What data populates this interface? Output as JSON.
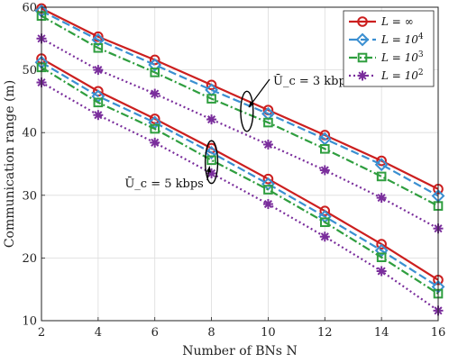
{
  "chart_data": {
    "type": "line",
    "xlabel": "Number of BNs N",
    "ylabel": "Communication range (m)",
    "xlim": [
      2,
      16
    ],
    "ylim": [
      10,
      60
    ],
    "xticks": [
      2,
      4,
      6,
      8,
      10,
      12,
      14,
      16
    ],
    "yticks": [
      10,
      20,
      30,
      40,
      50,
      60
    ],
    "grid": true,
    "legend_position": "top-right",
    "x": [
      2,
      4,
      6,
      8,
      10,
      12,
      14,
      16
    ],
    "series": [
      {
        "name": "L = ∞",
        "group": "3 kbps",
        "color": "#cc1f1f",
        "marker": "circle",
        "dash": "solid",
        "values": [
          59.8,
          55.3,
          51.6,
          47.6,
          43.6,
          39.6,
          35.5,
          31.0
        ]
      },
      {
        "name": "L = 10^4",
        "group": "3 kbps",
        "color": "#3a8fd1",
        "marker": "diamond",
        "dash": "dashed",
        "values": [
          59.4,
          54.8,
          50.8,
          46.8,
          43.0,
          39.0,
          34.9,
          29.9
        ]
      },
      {
        "name": "L = 10^3",
        "group": "3 kbps",
        "color": "#2f9e3f",
        "marker": "square",
        "dash": "dashdot",
        "values": [
          58.6,
          53.5,
          49.6,
          45.4,
          41.6,
          37.4,
          33.0,
          28.3
        ]
      },
      {
        "name": "L = 10^2",
        "group": "3 kbps",
        "color": "#7a2e9c",
        "marker": "star",
        "dash": "dotted",
        "values": [
          55.0,
          50.0,
          46.2,
          42.1,
          38.1,
          34.0,
          29.6,
          24.7
        ]
      },
      {
        "name": "L = ∞",
        "group": "5 kbps",
        "color": "#cc1f1f",
        "marker": "circle",
        "dash": "solid",
        "values": [
          51.8,
          46.6,
          42.2,
          37.5,
          32.6,
          27.5,
          22.2,
          16.5
        ]
      },
      {
        "name": "L = 10^4",
        "group": "5 kbps",
        "color": "#3a8fd1",
        "marker": "diamond",
        "dash": "dashed",
        "values": [
          51.2,
          45.8,
          41.6,
          36.8,
          31.8,
          26.6,
          21.2,
          15.4
        ]
      },
      {
        "name": "L = 10^3",
        "group": "5 kbps",
        "color": "#2f9e3f",
        "marker": "square",
        "dash": "dashdot",
        "values": [
          50.4,
          44.8,
          40.6,
          35.6,
          30.9,
          25.7,
          20.1,
          14.3
        ]
      },
      {
        "name": "L = 10^2",
        "group": "5 kbps",
        "color": "#7a2e9c",
        "marker": "star",
        "dash": "dotted",
        "values": [
          48.0,
          42.8,
          38.4,
          33.5,
          28.6,
          23.4,
          17.9,
          11.6
        ]
      }
    ],
    "legend": [
      {
        "label": "L = ∞",
        "base": "L = ∞",
        "sup": ""
      },
      {
        "label": "L = 10^4",
        "base": "L = 10",
        "sup": "4"
      },
      {
        "label": "L = 10^3",
        "base": "L = 10",
        "sup": "3"
      },
      {
        "label": "L = 10^2",
        "base": "L = 10",
        "sup": "2"
      }
    ],
    "annotations": [
      {
        "text": "Ū_c = 3 kbps",
        "ellipse_center": [
          9.25,
          43.4
        ],
        "ellipse_radii": [
          0.22,
          3.2
        ],
        "arrow_from": [
          9.3,
          43.0
        ],
        "arrow_to": [
          10.05,
          48.5
        ]
      },
      {
        "text": "Ū_c = 5 kbps",
        "ellipse_center": [
          8.0,
          35.3
        ],
        "ellipse_radii": [
          0.22,
          3.4
        ],
        "arrow_from": [
          6.9,
          26.4
        ],
        "arrow_to": [
          7.85,
          32.4
        ]
      }
    ]
  }
}
